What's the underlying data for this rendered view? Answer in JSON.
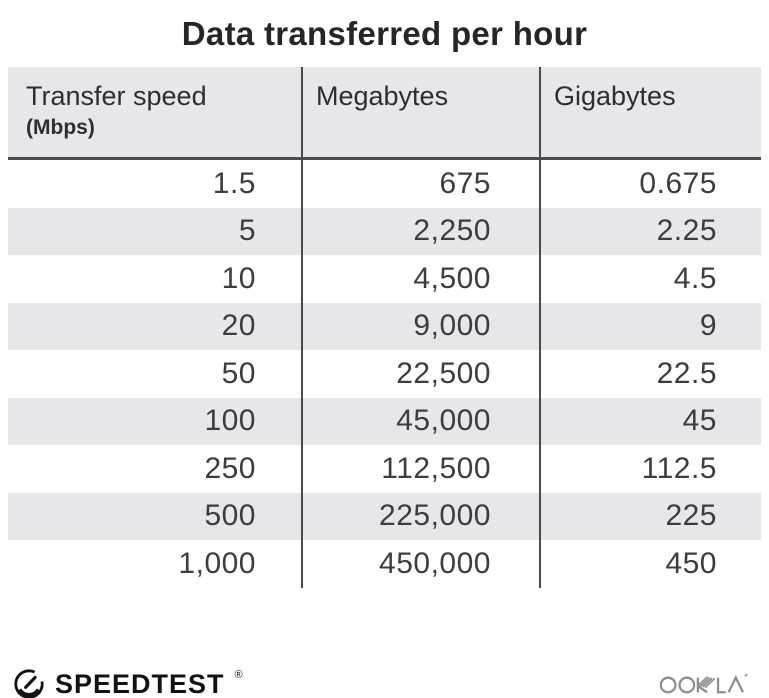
{
  "title": "Data transferred per hour",
  "table": {
    "columns": [
      {
        "label": "Transfer speed",
        "sublabel": "(Mbps)"
      },
      {
        "label": "Megabytes"
      },
      {
        "label": "Gigabytes"
      }
    ],
    "rows": [
      [
        "1.5",
        "675",
        "0.675"
      ],
      [
        "5",
        "2,250",
        "2.25"
      ],
      [
        "10",
        "4,500",
        "4.5"
      ],
      [
        "20",
        "9,000",
        "9"
      ],
      [
        "50",
        "22,500",
        "22.5"
      ],
      [
        "100",
        "45,000",
        "45"
      ],
      [
        "250",
        "112,500",
        "112.5"
      ],
      [
        "500",
        "225,000",
        "225"
      ],
      [
        "1,000",
        "450,000",
        "450"
      ]
    ]
  },
  "footer": {
    "speedtest_label": "SPEEDTEST",
    "registered_mark": "®",
    "ookla_label": "OOKLA"
  },
  "colors": {
    "stripe_gray": "#e7e7ea",
    "rule_dark": "#4d4d4d",
    "title_text": "#262626",
    "body_text": "#3d3d3d",
    "logo_black": "#131313",
    "ookla_gray": "#8f8f8f"
  },
  "chart_data": {
    "type": "table",
    "title": "Data transferred per hour",
    "columns": [
      "Transfer speed (Mbps)",
      "Megabytes",
      "Gigabytes"
    ],
    "rows": [
      [
        1.5,
        675,
        0.675
      ],
      [
        5,
        2250,
        2.25
      ],
      [
        10,
        4500,
        4.5
      ],
      [
        20,
        9000,
        9
      ],
      [
        50,
        22500,
        22.5
      ],
      [
        100,
        45000,
        45
      ],
      [
        250,
        112500,
        112.5
      ],
      [
        500,
        225000,
        225
      ],
      [
        1000,
        450000,
        450
      ]
    ]
  }
}
